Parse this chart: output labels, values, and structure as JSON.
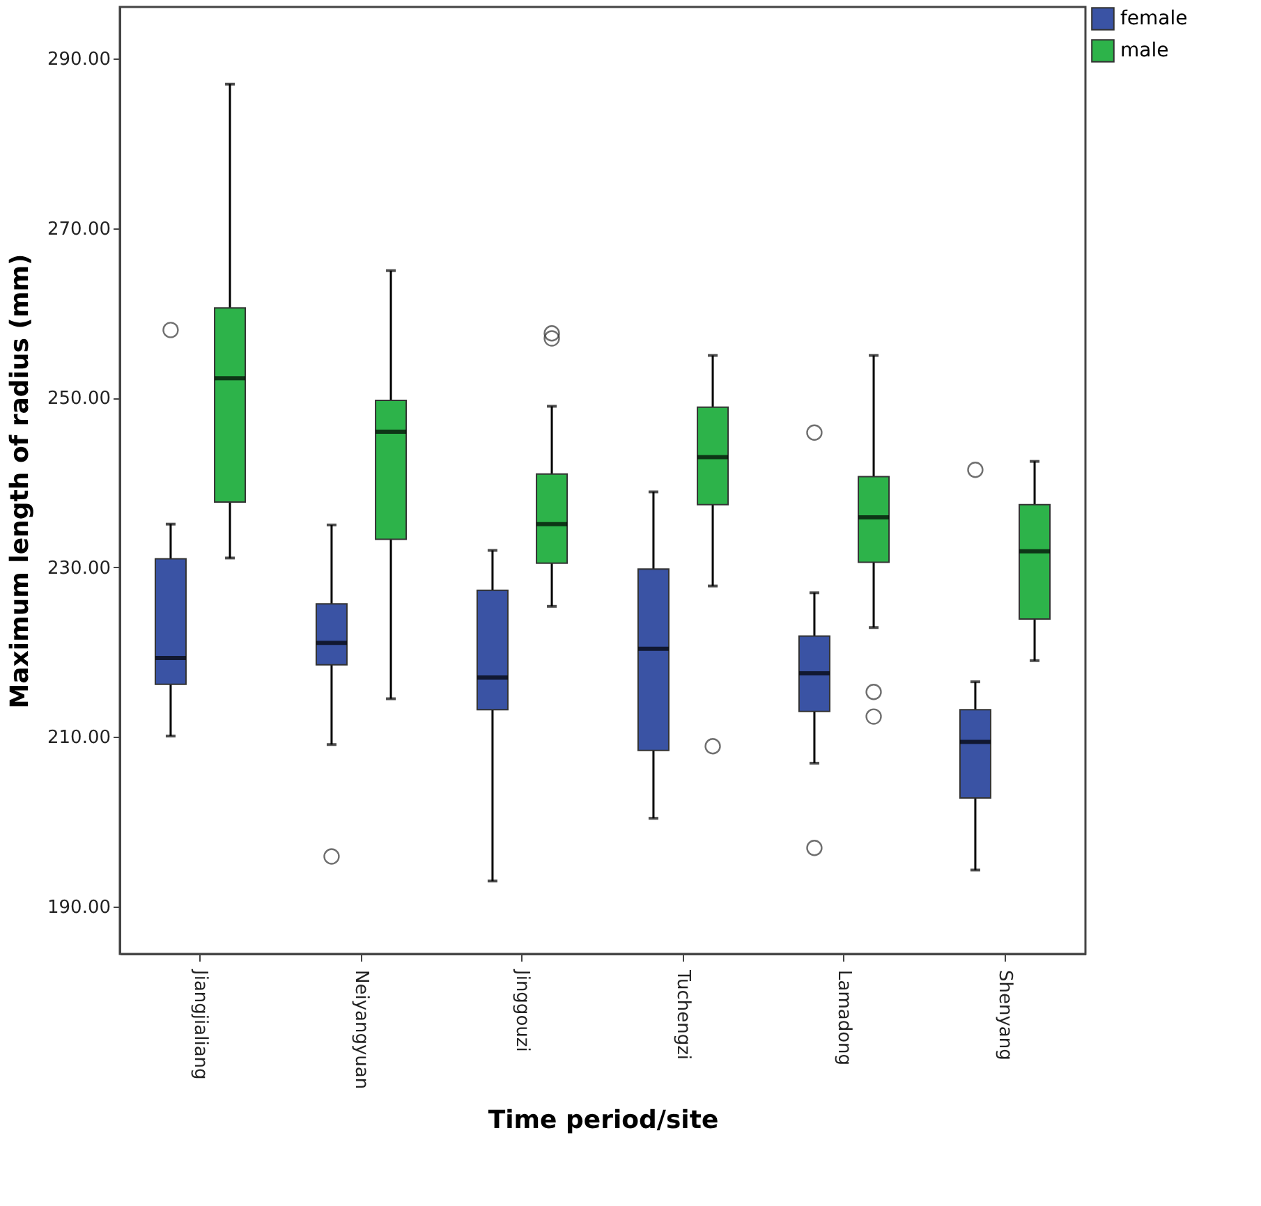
{
  "chart_data": {
    "type": "box",
    "xlabel": "Time period/site",
    "ylabel": "Maximum length of radius (mm)",
    "categories": [
      "Jiangjialiang",
      "Neiyangyuan",
      "Jinggouzi",
      "Tuchengzi",
      "Lamadong",
      "Shenyang"
    ],
    "ylim": [
      184.4,
      296.1
    ],
    "yticks": [
      {
        "value": 190,
        "label": "190.00"
      },
      {
        "value": 210,
        "label": "210.00"
      },
      {
        "value": 230,
        "label": "230.00"
      },
      {
        "value": 250,
        "label": "250.00"
      },
      {
        "value": 270,
        "label": "270.00"
      },
      {
        "value": 290,
        "label": "290.00"
      }
    ],
    "grid": false,
    "legend": "right",
    "series": [
      {
        "name": "female",
        "color": "#3a53a4",
        "boxes": [
          {
            "low": 210.1,
            "q1": 216.2,
            "median": 219.3,
            "q3": 231,
            "high": 235.1,
            "outliers": [
              258
            ]
          },
          {
            "low": 209.1,
            "q1": 218.5,
            "median": 221.1,
            "q3": 225.7,
            "high": 235,
            "outliers": [
              195.9
            ]
          },
          {
            "low": 193,
            "q1": 213.2,
            "median": 217,
            "q3": 227.3,
            "high": 232
          },
          {
            "low": 200.4,
            "q1": 208.4,
            "median": 220.4,
            "q3": 229.8,
            "high": 238.9
          },
          {
            "low": 206.9,
            "q1": 213,
            "median": 217.5,
            "q3": 221.9,
            "high": 227,
            "outliers": [
              245.9,
              196.9
            ]
          },
          {
            "low": 194.3,
            "q1": 202.8,
            "median": 209.4,
            "q3": 213.2,
            "high": 216.5,
            "outliers": [
              241.5
            ]
          }
        ]
      },
      {
        "name": "male",
        "color": "#2db34a",
        "boxes": [
          {
            "low": 231.1,
            "q1": 237.7,
            "median": 252.3,
            "q3": 260.6,
            "high": 287
          },
          {
            "low": 214.5,
            "q1": 233.3,
            "median": 246,
            "q3": 249.7,
            "high": 265
          },
          {
            "low": 225.4,
            "q1": 230.5,
            "median": 235.1,
            "q3": 241,
            "high": 249,
            "outliers": [
              257.6,
              257
            ]
          },
          {
            "low": 227.8,
            "q1": 237.4,
            "median": 243,
            "q3": 248.9,
            "high": 255,
            "outliers": [
              208.9
            ]
          },
          {
            "low": 222.9,
            "q1": 230.6,
            "median": 235.9,
            "q3": 240.7,
            "high": 255,
            "outliers": [
              215.3,
              212.4
            ]
          },
          {
            "low": 219,
            "q1": 223.9,
            "median": 231.9,
            "q3": 237.4,
            "high": 242.5
          }
        ]
      }
    ]
  }
}
